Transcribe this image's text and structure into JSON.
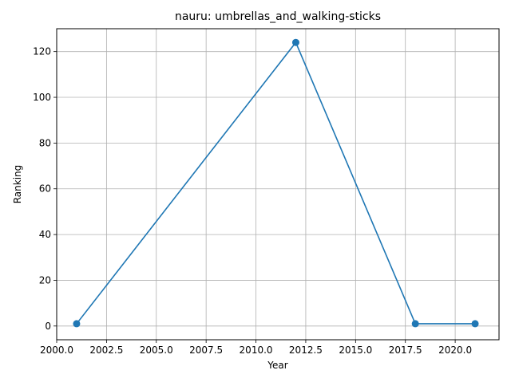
{
  "chart_data": {
    "type": "line",
    "title": "nauru: umbrellas_and_walking-sticks",
    "xlabel": "Year",
    "ylabel": "Ranking",
    "xlim": [
      2000,
      2022.2
    ],
    "ylim": [
      -6,
      130
    ],
    "grid": true,
    "x_ticks": [
      2000,
      2002.5,
      2005,
      2007.5,
      2010,
      2012.5,
      2015,
      2017.5,
      2020
    ],
    "x_tick_labels": [
      "2000.0",
      "2002.5",
      "2005.0",
      "2007.5",
      "2010.0",
      "2012.5",
      "2015.0",
      "2017.5",
      "2020.0"
    ],
    "y_ticks": [
      0,
      20,
      40,
      60,
      80,
      100,
      120
    ],
    "y_tick_labels": [
      "0",
      "20",
      "40",
      "60",
      "80",
      "100",
      "120"
    ],
    "series": [
      {
        "name": "Ranking",
        "color": "#1f77b4",
        "marker": "circle",
        "x": [
          2001,
          2012,
          2018,
          2021
        ],
        "y": [
          1,
          124,
          1,
          1
        ]
      }
    ]
  }
}
